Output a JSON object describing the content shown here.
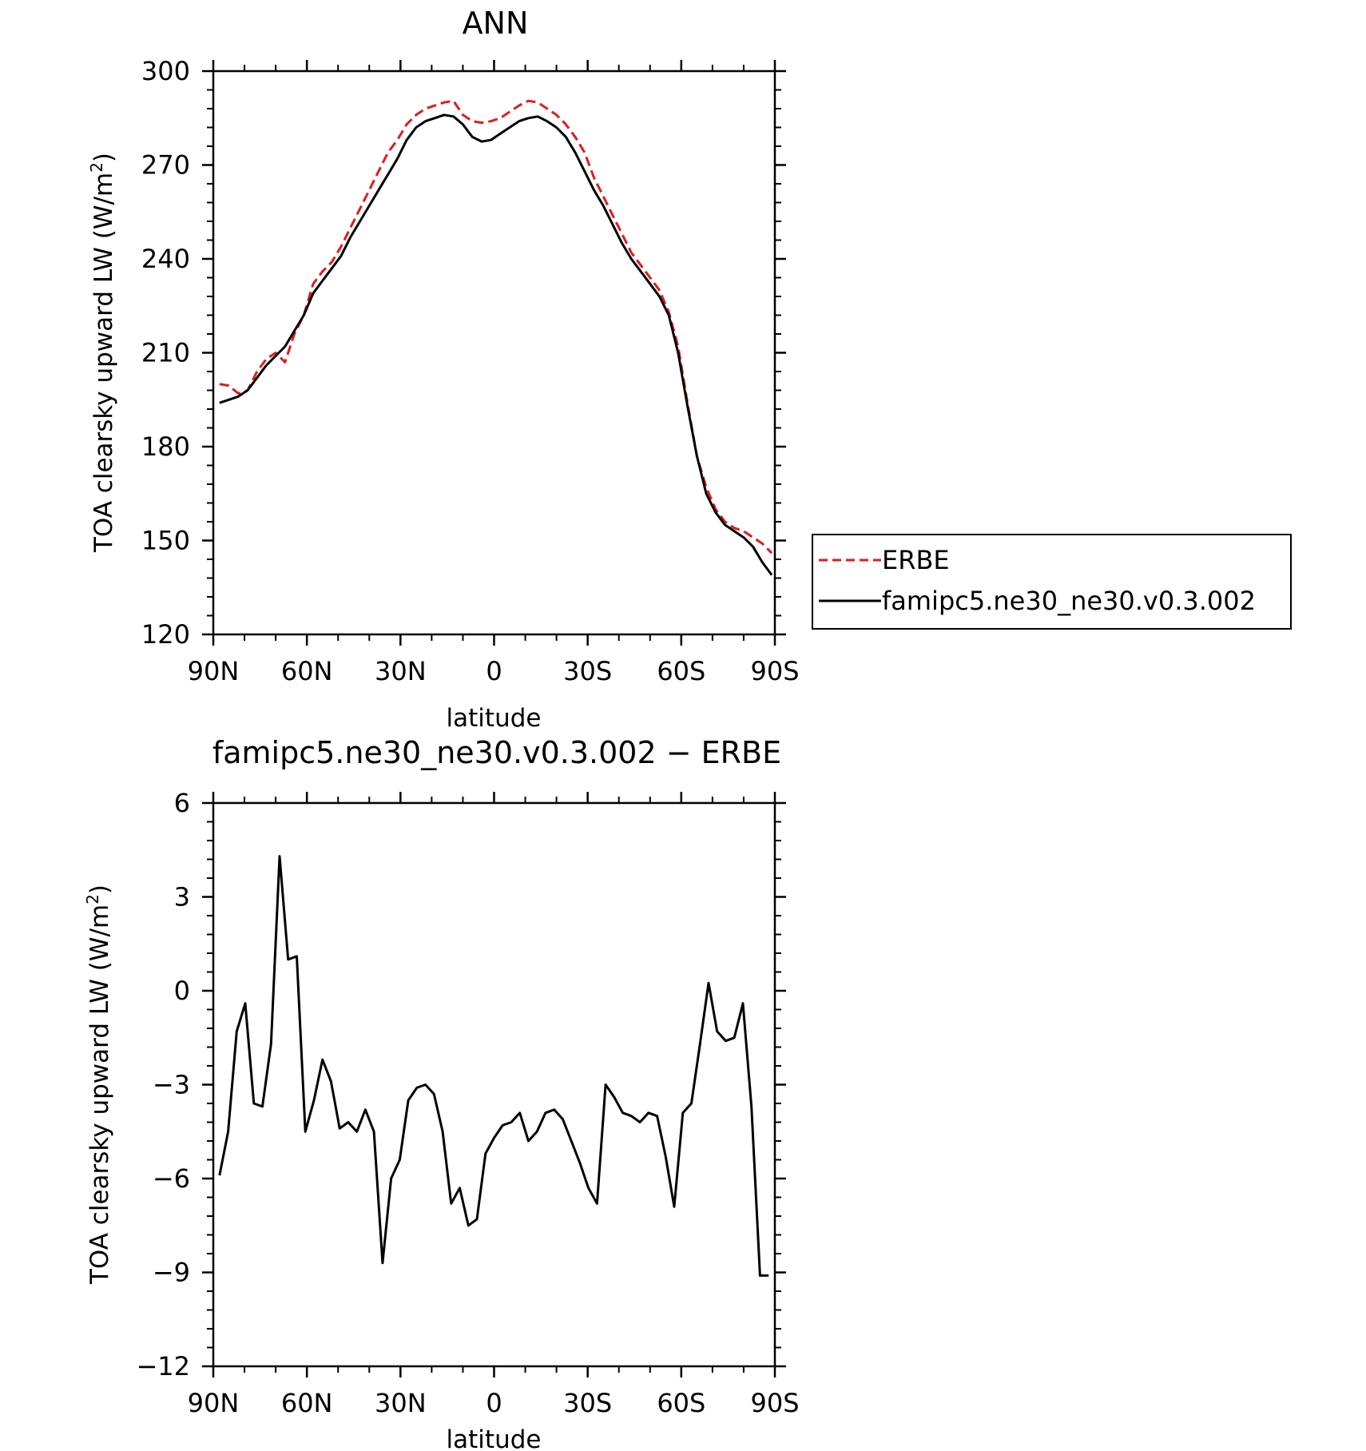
{
  "colors": {
    "erbe": "#e41a1c",
    "model": "#000000"
  },
  "chart_data": [
    {
      "type": "line",
      "title": "ANN",
      "xlabel": "latitude",
      "ylabel_main": "TOA clearsky upward LW (W/m",
      "ylabel_sup": "2",
      "ylabel_close": ")",
      "xlim": [
        90,
        -90
      ],
      "ylim": [
        120,
        300
      ],
      "xticks": [
        {
          "value": 90,
          "label": "90N"
        },
        {
          "value": 60,
          "label": "60N"
        },
        {
          "value": 30,
          "label": "30N"
        },
        {
          "value": 0,
          "label": "0"
        },
        {
          "value": -30,
          "label": "30S"
        },
        {
          "value": -60,
          "label": "60S"
        },
        {
          "value": -90,
          "label": "90S"
        }
      ],
      "yticks": [
        {
          "value": 300,
          "label": "300"
        },
        {
          "value": 270,
          "label": "270"
        },
        {
          "value": 240,
          "label": "240"
        },
        {
          "value": 210,
          "label": "210"
        },
        {
          "value": 180,
          "label": "180"
        },
        {
          "value": 150,
          "label": "150"
        },
        {
          "value": 120,
          "label": "120"
        }
      ],
      "grid": false,
      "legend": {
        "position": "right",
        "entries": [
          {
            "name": "ERBE",
            "style": "dashed",
            "color": "#e41a1c"
          },
          {
            "name": "famipc5.ne30_ne30.v0.3.002",
            "style": "solid",
            "color": "#000000"
          }
        ]
      },
      "series": [
        {
          "name": "ERBE",
          "style": "dashed",
          "x": [
            88,
            85,
            82,
            79,
            76,
            73,
            70,
            67,
            64,
            61,
            58,
            55,
            52,
            49,
            46,
            43,
            40,
            37,
            34,
            31,
            28,
            25,
            22,
            19,
            16,
            13,
            10,
            7,
            4,
            1,
            -2,
            -5,
            -8,
            -11,
            -14,
            -17,
            -20,
            -23,
            -26,
            -29,
            -32,
            -35,
            -38,
            -41,
            -44,
            -47,
            -50,
            -53,
            -56,
            -59,
            -62,
            -65,
            -68,
            -71,
            -74,
            -77,
            -80,
            -83,
            -86,
            -89
          ],
          "y": [
            200,
            199.5,
            197,
            198,
            204,
            208,
            210,
            207,
            216,
            222,
            232,
            236,
            239,
            244,
            250,
            256,
            262,
            268,
            274,
            278,
            283,
            286,
            288,
            289,
            290,
            290.5,
            286,
            284,
            283.5,
            284,
            285,
            287,
            289,
            290.5,
            290,
            288,
            286,
            283,
            279,
            274,
            266,
            260,
            254,
            248,
            242,
            238,
            234,
            230,
            223,
            212,
            194,
            177,
            167,
            160,
            156,
            154,
            153,
            151,
            149,
            146
          ]
        },
        {
          "name": "famipc5.ne30_ne30.v0.3.002",
          "style": "solid",
          "x": [
            88,
            85,
            82,
            79,
            76,
            73,
            70,
            67,
            64,
            61,
            58,
            55,
            52,
            49,
            46,
            43,
            40,
            37,
            34,
            31,
            28,
            25,
            22,
            19,
            16,
            13,
            10,
            7,
            4,
            1,
            -2,
            -5,
            -8,
            -11,
            -14,
            -17,
            -20,
            -23,
            -26,
            -29,
            -32,
            -35,
            -38,
            -41,
            -44,
            -47,
            -50,
            -53,
            -56,
            -59,
            -62,
            -65,
            -68,
            -71,
            -74,
            -77,
            -80,
            -83,
            -86,
            -89
          ],
          "y": [
            194,
            195,
            196,
            198,
            202,
            206,
            209,
            212,
            217,
            222,
            229,
            233,
            237,
            241,
            247,
            252,
            257,
            262,
            267,
            272,
            278,
            282,
            284,
            285,
            286,
            285.5,
            283,
            279,
            277.5,
            278,
            280,
            282,
            284,
            285,
            285.5,
            284,
            282,
            279,
            274,
            268,
            262,
            257,
            251,
            245,
            240,
            236,
            232,
            228,
            222,
            210,
            193,
            177,
            165,
            159,
            155,
            153,
            151,
            148,
            143,
            139
          ]
        }
      ]
    },
    {
      "type": "line",
      "title": "famipc5.ne30_ne30.v0.3.002 − ERBE",
      "xlabel": "latitude",
      "ylabel_main": "TOA clearsky upward LW (W/m",
      "ylabel_sup": "2",
      "ylabel_close": ")",
      "xlim": [
        90,
        -90
      ],
      "ylim": [
        -12,
        6
      ],
      "xticks": [
        {
          "value": 90,
          "label": "90N"
        },
        {
          "value": 60,
          "label": "60N"
        },
        {
          "value": 30,
          "label": "30N"
        },
        {
          "value": 0,
          "label": "0"
        },
        {
          "value": -30,
          "label": "30S"
        },
        {
          "value": -60,
          "label": "60S"
        },
        {
          "value": -90,
          "label": "90S"
        }
      ],
      "yticks": [
        {
          "value": 6,
          "label": "6"
        },
        {
          "value": 3,
          "label": "3"
        },
        {
          "value": 0,
          "label": "0"
        },
        {
          "value": -3,
          "label": "−3"
        },
        {
          "value": -6,
          "label": "−6"
        },
        {
          "value": -9,
          "label": "−9"
        },
        {
          "value": -12,
          "label": "−12"
        }
      ],
      "grid": false,
      "series": [
        {
          "style": "solid",
          "x": [
            88,
            85.25,
            82.5,
            79.75,
            77,
            74.25,
            71.5,
            68.75,
            66,
            63.25,
            60.5,
            57.75,
            55,
            52.25,
            49.5,
            46.75,
            44,
            41.25,
            38.5,
            35.75,
            33,
            30.25,
            27.5,
            24.75,
            22,
            19.25,
            16.5,
            13.75,
            11,
            8.25,
            5.5,
            2.75,
            0,
            -2.75,
            -5.5,
            -8.25,
            -11,
            -13.75,
            -16.5,
            -19.25,
            -22,
            -24.75,
            -27.5,
            -30.25,
            -33,
            -35.75,
            -38.5,
            -41.25,
            -44,
            -46.75,
            -49.5,
            -52.25,
            -55,
            -57.75,
            -60.5,
            -63.25,
            -66,
            -68.75,
            -71.5,
            -74.25,
            -77,
            -79.75,
            -82.5,
            -85.25,
            -88
          ],
          "y": [
            -5.9,
            -4.5,
            -1.3,
            -0.4,
            -3.6,
            -3.7,
            -1.7,
            4.3,
            1.0,
            1.1,
            -4.5,
            -3.5,
            -2.2,
            -2.9,
            -4.4,
            -4.2,
            -4.5,
            -3.8,
            -4.5,
            -8.7,
            -6.0,
            -5.4,
            -3.5,
            -3.1,
            -3.0,
            -3.3,
            -4.5,
            -6.8,
            -6.3,
            -7.5,
            -7.3,
            -5.2,
            -4.7,
            -4.3,
            -4.2,
            -3.9,
            -4.8,
            -4.5,
            -3.9,
            -3.8,
            -4.1,
            -4.8,
            -5.5,
            -6.3,
            -6.8,
            -3.0,
            -3.4,
            -3.9,
            -4.0,
            -4.2,
            -3.9,
            -4.0,
            -5.3,
            -6.9,
            -3.9,
            -3.6,
            -1.7,
            0.25,
            -1.3,
            -1.6,
            -1.5,
            -0.4,
            -3.7,
            -9.1,
            -9.1
          ]
        }
      ]
    }
  ]
}
